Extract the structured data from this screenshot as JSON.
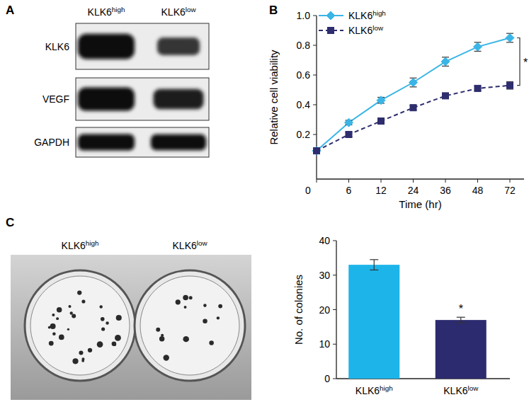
{
  "blot": {
    "panel": "A",
    "lanes": [
      "KLK6high",
      "KLK6low"
    ],
    "rows": [
      {
        "label": "KLK6",
        "bands": [
          1.0,
          0.45
        ]
      },
      {
        "label": "VEGF",
        "bands": [
          1.0,
          0.75
        ]
      },
      {
        "label": "GAPDH",
        "bands": [
          1.0,
          0.95
        ]
      }
    ]
  },
  "photo": {
    "lanes": [
      "KLK6high",
      "KLK6low"
    ]
  },
  "chart_data": [
    {
      "panel": "B",
      "type": "line",
      "x_label": "Time (hr)",
      "y_label": "Relative cell viability",
      "categories": [
        "0",
        "6",
        "12",
        "24",
        "36",
        "48",
        "72"
      ],
      "ylim": [
        -0.1,
        1.0
      ],
      "yticks": [
        0.2,
        0.4,
        0.6,
        0.8,
        {
          "value": 1.0,
          "label": "1.0"
        }
      ],
      "legend": "upper left",
      "series": [
        {
          "name": "KLK6high",
          "color": "#3ab5e6",
          "marker": "diamond",
          "line_style": "solid",
          "values": [
            0.09,
            0.28,
            0.43,
            0.55,
            0.69,
            0.79,
            0.85
          ],
          "errors": [
            0.01,
            0.015,
            0.02,
            0.03,
            0.03,
            0.03,
            0.03
          ]
        },
        {
          "name": "KLK6low",
          "color": "#2e2d6e",
          "marker": "square",
          "line_style": "dashed",
          "values": [
            0.09,
            0.2,
            0.29,
            0.38,
            0.46,
            0.51,
            0.53
          ],
          "errors": [
            0.01,
            0.015,
            0.02,
            0.015,
            0.015,
            0.015,
            0.025
          ]
        }
      ],
      "annotations": [
        {
          "text": "*"
        }
      ]
    },
    {
      "panel": "C",
      "type": "bar",
      "y_label": "No. of colonies",
      "categories": [
        "KLK6high",
        "KLK6low"
      ],
      "values": [
        33,
        17
      ],
      "errors": [
        1.5,
        0.8
      ],
      "colors": [
        "#1db4ea",
        "#2c2b6f"
      ],
      "ylim": [
        0,
        40
      ],
      "yticks": [
        0,
        10,
        20,
        30,
        40
      ],
      "annotations": [
        {
          "text": "*"
        }
      ]
    }
  ]
}
